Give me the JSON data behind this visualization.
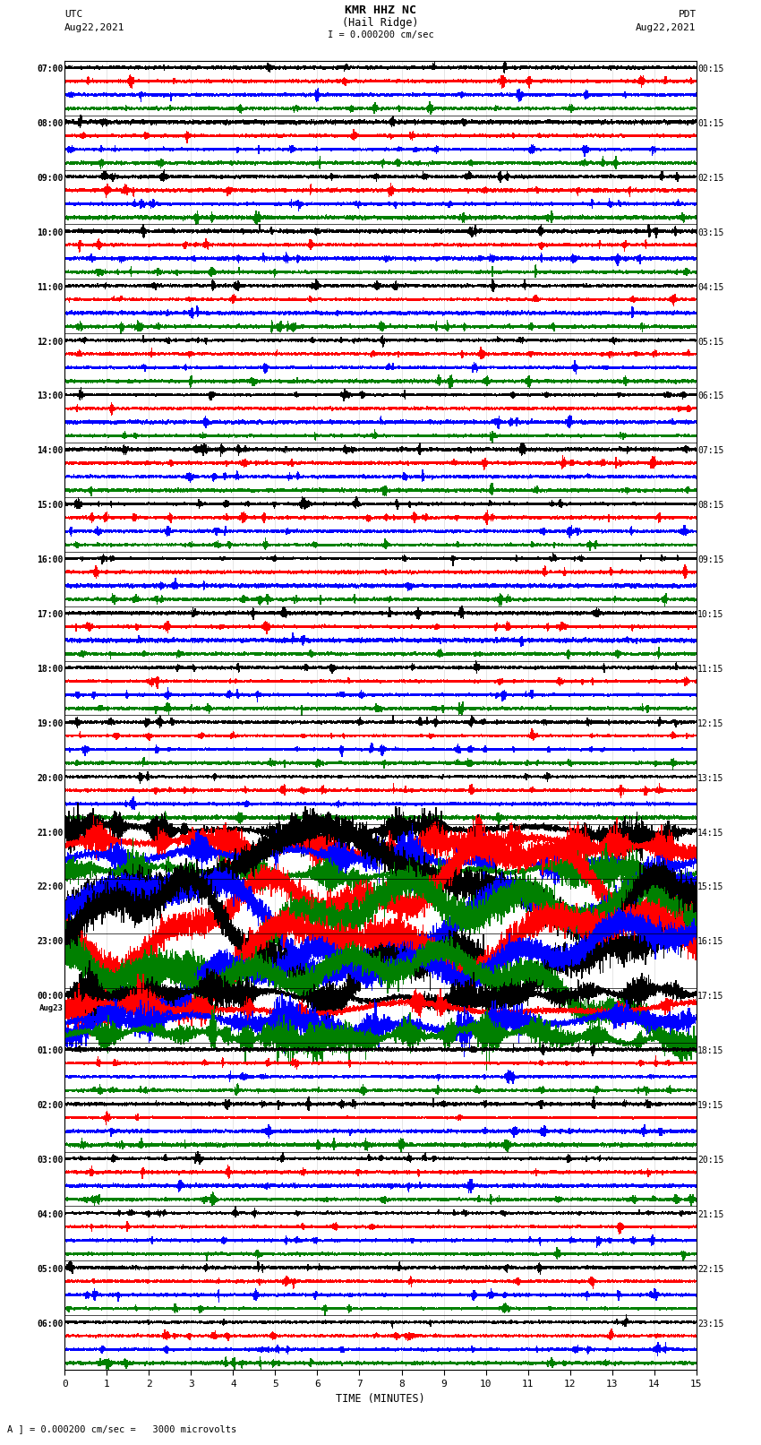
{
  "title_line1": "KMR HHZ NC",
  "title_line2": "(Hail Ridge)",
  "scale_bar": "I = 0.000200 cm/sec",
  "left_label": "UTC",
  "left_date": "Aug22,2021",
  "right_label": "PDT",
  "right_date": "Aug22,2021",
  "bottom_label": "TIME (MINUTES)",
  "bottom_note": "A ] = 0.000200 cm/sec =   3000 microvolts",
  "utc_times_left": [
    "07:00",
    "08:00",
    "09:00",
    "10:00",
    "11:00",
    "12:00",
    "13:00",
    "14:00",
    "15:00",
    "16:00",
    "17:00",
    "18:00",
    "19:00",
    "20:00",
    "21:00",
    "22:00",
    "23:00",
    "00:00",
    "01:00",
    "02:00",
    "03:00",
    "04:00",
    "05:00",
    "06:00"
  ],
  "aug23_label_row": 17,
  "pdt_times_right": [
    "00:15",
    "01:15",
    "02:15",
    "03:15",
    "04:15",
    "05:15",
    "06:15",
    "07:15",
    "08:15",
    "09:15",
    "10:15",
    "11:15",
    "12:15",
    "13:15",
    "14:15",
    "15:15",
    "16:15",
    "17:15",
    "18:15",
    "19:15",
    "20:15",
    "21:15",
    "22:15",
    "23:15"
  ],
  "n_rows": 24,
  "traces_per_row": 4,
  "colors": [
    "black",
    "red",
    "blue",
    "green"
  ],
  "xmin": 0,
  "xmax": 15,
  "xticks": [
    0,
    1,
    2,
    3,
    4,
    5,
    6,
    7,
    8,
    9,
    10,
    11,
    12,
    13,
    14,
    15
  ],
  "bg_color": "white",
  "high_activity_rows": [
    14,
    15,
    16,
    17
  ],
  "very_high_rows": [
    15,
    16
  ],
  "fig_width": 8.5,
  "fig_height": 16.13
}
